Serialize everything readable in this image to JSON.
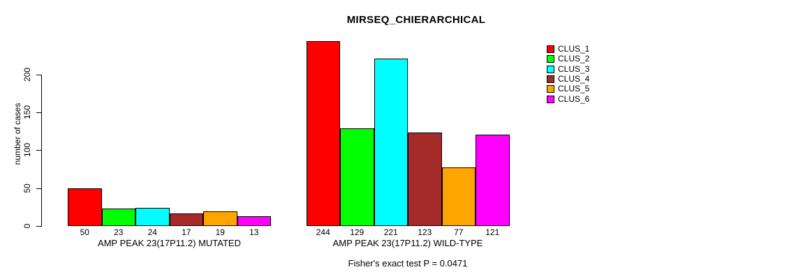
{
  "chart": {
    "title": "MIRSEQ_CHIERARCHICAL",
    "ylabel": "number of cases",
    "footnote": "Fisher's exact test P = 0.0471"
  },
  "chart_data": {
    "type": "bar",
    "title": "MIRSEQ_CHIERARCHICAL",
    "xlabel": "",
    "ylabel": "number of cases",
    "categories": [
      "AMP PEAK 23(17P11.2) MUTATED",
      "AMP PEAK 23(17P11.2) WILD-TYPE"
    ],
    "series": [
      {
        "name": "CLUS_1",
        "color": "#FF0000",
        "values": [
          50,
          244
        ]
      },
      {
        "name": "CLUS_2",
        "color": "#00FF00",
        "values": [
          23,
          129
        ]
      },
      {
        "name": "CLUS_3",
        "color": "#00FFFF",
        "values": [
          24,
          221
        ]
      },
      {
        "name": "CLUS_4",
        "color": "#A52A2A",
        "values": [
          17,
          123
        ]
      },
      {
        "name": "CLUS_5",
        "color": "#FFA500",
        "values": [
          19,
          77
        ]
      },
      {
        "name": "CLUS_6",
        "color": "#FF00FF",
        "values": [
          13,
          121
        ]
      }
    ],
    "yticks": [
      0,
      50,
      100,
      150,
      200
    ],
    "ylim": [
      0,
      244
    ],
    "bar_value_labels": true,
    "legend_position": "top-right",
    "grid": false,
    "annotation": "Fisher's exact test P = 0.0471"
  }
}
